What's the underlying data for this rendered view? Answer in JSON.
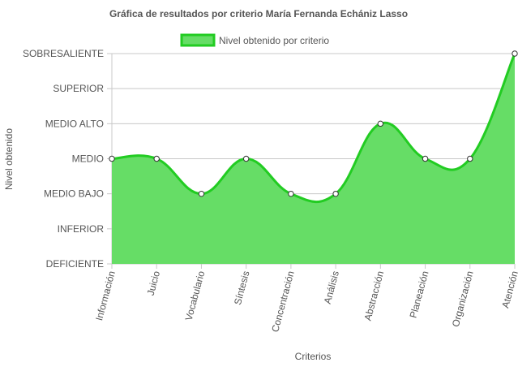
{
  "chart_data": {
    "type": "area",
    "title": "Gráfica de resultados por criterio María Fernanda Echániz Lasso",
    "xlabel": "Criterios",
    "ylabel": "Nivel obtenido",
    "y_levels": [
      "DEFICIENTE",
      "INFERIOR",
      "MEDIO BAJO",
      "MEDIO",
      "MEDIO ALTO",
      "SUPERIOR",
      "SOBRESALIENTE"
    ],
    "ylim": [
      0,
      6
    ],
    "categories": [
      "Información",
      "Juicio",
      "Vocabulario",
      "Síntesis",
      "Concentración",
      "Análisis",
      "Abstracción",
      "Planeación",
      "Organización",
      "Atención"
    ],
    "series": [
      {
        "name": "Nivel obtenido por criterio",
        "values": [
          3,
          3,
          2,
          3,
          2,
          2,
          4,
          3,
          3,
          6
        ],
        "value_labels": [
          "MEDIO",
          "MEDIO",
          "MEDIO BAJO",
          "MEDIO",
          "MEDIO BAJO",
          "MEDIO BAJO",
          "MEDIO ALTO",
          "MEDIO",
          "MEDIO",
          "SOBRESALIENTE"
        ]
      }
    ],
    "grid": true,
    "legend_position": "top-center",
    "colors": {
      "fill": "#66dd66",
      "line": "#22cc22",
      "grid": "#c8c8c8",
      "point_fill": "#ffffff",
      "point_stroke": "#333333",
      "text": "#555555"
    }
  }
}
